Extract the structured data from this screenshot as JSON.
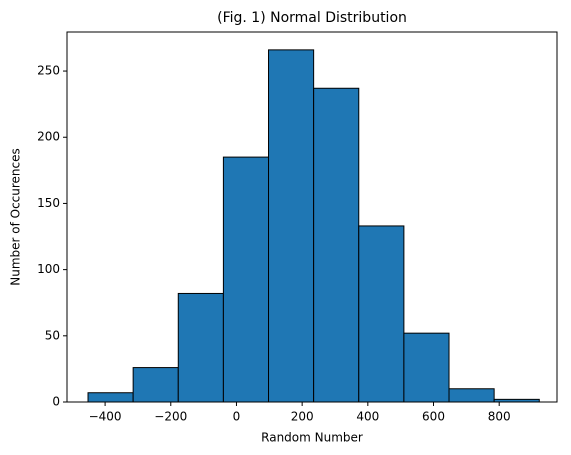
{
  "chart_data": {
    "type": "histogram",
    "title": "(Fig. 1) Normal Distribution",
    "x_label": "Random Number",
    "y_label": "Number of Occurences",
    "bins": [
      -452,
      -314.6,
      -177.2,
      -39.8,
      97.6,
      235,
      372.4,
      509.8,
      647.2,
      784.6,
      922
    ],
    "counts": [
      7,
      26,
      82,
      185,
      266,
      237,
      133,
      52,
      10,
      2
    ],
    "color": "#1f77b4",
    "edgecolor": "#000000",
    "xlim": [
      -516,
      976
    ],
    "ylim": [
      0,
      279.5
    ],
    "xticks": [
      {
        "value": -400,
        "label": "−400"
      },
      {
        "value": -200,
        "label": "−200"
      },
      0,
      200,
      400,
      600,
      800
    ],
    "yticks": [
      0,
      50,
      100,
      150,
      200,
      250
    ]
  }
}
